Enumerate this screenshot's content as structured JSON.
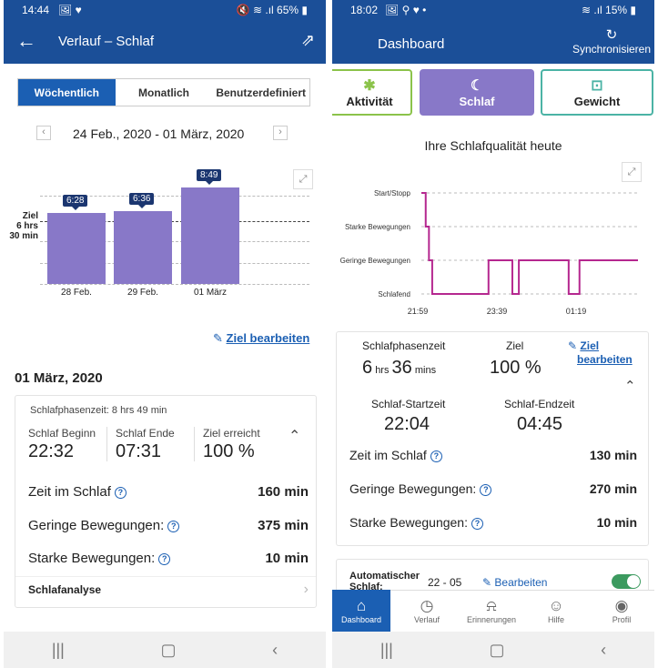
{
  "left": {
    "status": {
      "time": "14:44",
      "icons": "🖼 ♥",
      "battery": "🔇 ≋ .ıl 65% ▮"
    },
    "appbar": {
      "title": "Verlauf – Schlaf"
    },
    "segments": {
      "weekly": "Wöchentlich",
      "monthly": "Monatlich",
      "custom": "Benutzerdefiniert"
    },
    "date_range": "24 Feb., 2020 - 01 März, 2020",
    "chart_data": {
      "type": "bar",
      "categories": [
        "28 Feb.",
        "29 Feb.",
        "01 März"
      ],
      "values": [
        6.4667,
        6.6,
        8.8167
      ],
      "value_labels": [
        "6:28",
        "6:36",
        "8:49"
      ],
      "goal_label": [
        "Ziel",
        "6 hrs",
        "30 min"
      ],
      "goal": 6.5
    },
    "edit_goal": "Ziel bearbeiten",
    "day_title": "01 März, 2020",
    "card": {
      "phase_time": "Schlafphasenzeit: 8 hrs 49 min",
      "begin_label": "Schlaf Beginn",
      "begin": "22:32",
      "end_label": "Schlaf Ende",
      "end": "07:31",
      "goal_label": "Ziel erreicht",
      "goal": "100 %",
      "rows": [
        {
          "label": "Zeit im Schlaf",
          "value": "160 min"
        },
        {
          "label": "Geringe Bewegungen:",
          "value": "375 min"
        },
        {
          "label": "Starke Bewegungen:",
          "value": "10 min"
        }
      ],
      "analysis": "Schlafanalyse"
    }
  },
  "right": {
    "status": {
      "time": "18:02",
      "icons": "🖼 ⚲ ♥ •",
      "battery": "≋ .ıl 15% ▮"
    },
    "appbar": {
      "title": "Dashboard",
      "sync": "Synchronisieren"
    },
    "tabs": {
      "activity": "Aktivität",
      "sleep": "Schlaf",
      "weight": "Gewicht"
    },
    "quality_title": "Ihre Schlafqualität heute",
    "chart_data": {
      "type": "line",
      "levels": [
        "Start/Stopp",
        "Starke Bewegungen",
        "Geringe Bewegungen",
        "Schlafend"
      ],
      "x_ticks": [
        "21:59",
        "23:39",
        "01:19"
      ],
      "points": [
        [
          0,
          0
        ],
        [
          0.02,
          0
        ],
        [
          0.02,
          1
        ],
        [
          0.035,
          1
        ],
        [
          0.035,
          2
        ],
        [
          0.05,
          2
        ],
        [
          0.05,
          3
        ],
        [
          0.31,
          3
        ],
        [
          0.31,
          2
        ],
        [
          0.42,
          2
        ],
        [
          0.42,
          3
        ],
        [
          0.45,
          3
        ],
        [
          0.45,
          2
        ],
        [
          0.68,
          2
        ],
        [
          0.68,
          3
        ],
        [
          0.73,
          3
        ],
        [
          0.73,
          2
        ],
        [
          1,
          2
        ]
      ],
      "color": "#b5278f"
    },
    "summary": {
      "phase_label": "Schlafphasenzeit",
      "phase_h": "6",
      "phase_hu": "hrs",
      "phase_m": "36",
      "phase_mu": "mins",
      "goal_label": "Ziel",
      "goal": "100 %",
      "edit1": "Ziel",
      "edit2": "bearbeiten",
      "start_label": "Schlaf-Startzeit",
      "start": "22:04",
      "end_label": "Schlaf-Endzeit",
      "end": "04:45",
      "rows": [
        {
          "label": "Zeit im Schlaf",
          "value": "130 min"
        },
        {
          "label": "Geringe Bewegungen:",
          "value": "270 min"
        },
        {
          "label": "Starke Bewegungen:",
          "value": "10 min"
        }
      ]
    },
    "auto": {
      "label1": "Automatischer",
      "label2": "Schlaf:",
      "time": "22 - 05",
      "edit": "Bearbeiten"
    },
    "bottom_nav": [
      "Dashboard",
      "Verlauf",
      "Erinnerungen",
      "Hilfe",
      "Profil"
    ]
  }
}
